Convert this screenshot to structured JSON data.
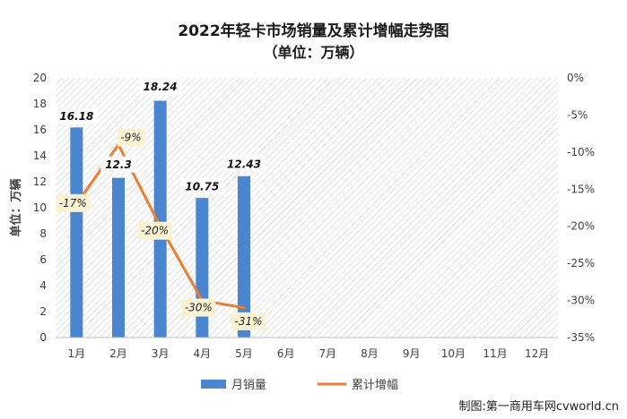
{
  "chart_data": {
    "type": "bar",
    "title": "2022年轻卡市场销量及累计增幅走势图",
    "subtitle": "（单位：万辆）",
    "ylabel": "单位：万辆",
    "categories": [
      "1月",
      "2月",
      "3月",
      "4月",
      "5月",
      "6月",
      "7月",
      "8月",
      "9月",
      "10月",
      "11月",
      "12月"
    ],
    "series": [
      {
        "name": "月销量",
        "type": "bar",
        "axis": "left",
        "color": "#4A86D0",
        "values": [
          16.18,
          12.3,
          18.24,
          10.75,
          12.43,
          null,
          null,
          null,
          null,
          null,
          null,
          null
        ],
        "labels": [
          "16.18",
          "12.3",
          "18.24",
          "10.75",
          "12.43"
        ]
      },
      {
        "name": "累计增幅",
        "type": "line",
        "axis": "right",
        "color": "#ED7D31",
        "values": [
          -17,
          -9,
          -20,
          -30,
          -31,
          null,
          null,
          null,
          null,
          null,
          null,
          null
        ],
        "labels": [
          "-17%",
          "-9%",
          "-20%",
          "-30%",
          "-31%"
        ]
      }
    ],
    "y_left": {
      "range": [
        0,
        20
      ],
      "ticks": [
        "0",
        "2",
        "4",
        "6",
        "8",
        "10",
        "12",
        "14",
        "16",
        "18",
        "20"
      ]
    },
    "y_right": {
      "range": [
        -35,
        0
      ],
      "ticks": [
        "-35%",
        "-30%",
        "-25%",
        "-20%",
        "-15%",
        "-10%",
        "-5%",
        "0%"
      ]
    },
    "legend": {
      "position": "bottom",
      "items": [
        "月销量",
        "累计增幅"
      ]
    },
    "grid": false,
    "plot_background": "hatched"
  },
  "credit": "制图:第一商用车网cvworld.cn"
}
